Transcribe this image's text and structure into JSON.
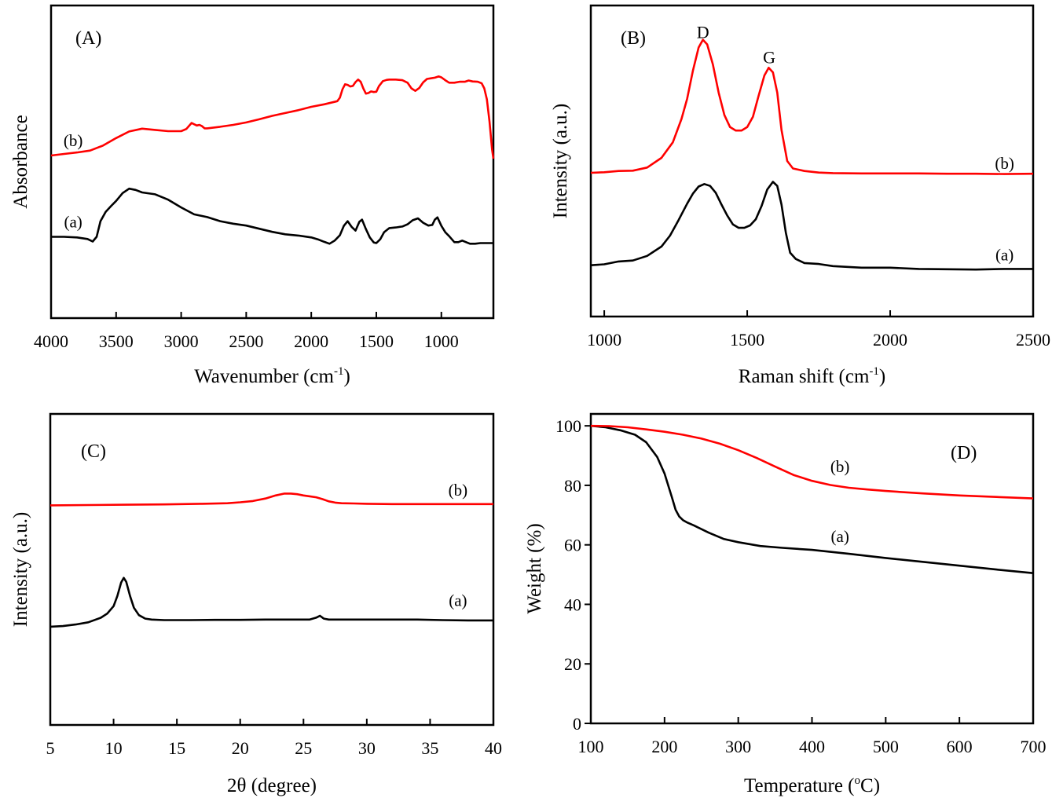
{
  "chart_data": [
    {
      "id": "A",
      "type": "line",
      "panel_label": "(A)",
      "title": "",
      "xlabel": "Wavenumber (cm",
      "xlabel_sup": "-1",
      "xlabel_tail": ")",
      "ylabel": "Absorbance",
      "xlim": [
        4000,
        600
      ],
      "ylim": [
        0,
        100
      ],
      "x_reversed": true,
      "xticks": [
        4000,
        3500,
        3000,
        2500,
        2000,
        1500,
        1000
      ],
      "yticks": [],
      "grid": false,
      "series": [
        {
          "name": "(a)",
          "color": "#000000",
          "label_pos": {
            "x": 3830,
            "y": 29
          },
          "x": [
            4000,
            3900,
            3800,
            3720,
            3680,
            3650,
            3620,
            3580,
            3540,
            3500,
            3450,
            3400,
            3350,
            3300,
            3200,
            3100,
            3000,
            2900,
            2800,
            2700,
            2600,
            2500,
            2400,
            2300,
            2200,
            2100,
            2000,
            1950,
            1900,
            1860,
            1820,
            1780,
            1750,
            1720,
            1690,
            1660,
            1630,
            1610,
            1580,
            1550,
            1520,
            1500,
            1470,
            1440,
            1400,
            1350,
            1300,
            1260,
            1220,
            1180,
            1140,
            1100,
            1070,
            1050,
            1030,
            1000,
            970,
            940,
            900,
            870,
            840,
            810,
            780,
            740,
            700,
            650,
            600
          ],
          "y": [
            26,
            26,
            25.8,
            25.3,
            24.5,
            26,
            31,
            34,
            35.8,
            37.5,
            40,
            41.4,
            41,
            40.2,
            39.6,
            37.9,
            35.4,
            33.2,
            32.3,
            31,
            30.2,
            29.6,
            28.6,
            27.6,
            26.8,
            26.4,
            25.8,
            25.2,
            24.4,
            23.8,
            24.8,
            26.5,
            29.5,
            31,
            29.2,
            28,
            30.8,
            31.5,
            28.5,
            25.8,
            24.2,
            24,
            25.2,
            27.5,
            28.8,
            29,
            29.3,
            30,
            31.3,
            31.9,
            30.5,
            29.6,
            29.8,
            31.5,
            32.2,
            29.5,
            27.5,
            26.2,
            24.3,
            24.3,
            24.8,
            24.3,
            23.8,
            23.8,
            24,
            24,
            24
          ]
        },
        {
          "name": "(b)",
          "color": "#ff0000",
          "label_pos": {
            "x": 3830,
            "y": 55
          },
          "x": [
            4000,
            3900,
            3800,
            3700,
            3600,
            3500,
            3400,
            3300,
            3200,
            3100,
            3000,
            2960,
            2920,
            2900,
            2880,
            2860,
            2840,
            2820,
            2800,
            2700,
            2600,
            2500,
            2400,
            2300,
            2200,
            2100,
            2000,
            1900,
            1800,
            1780,
            1760,
            1740,
            1720,
            1700,
            1680,
            1660,
            1640,
            1620,
            1600,
            1580,
            1560,
            1540,
            1520,
            1500,
            1480,
            1450,
            1420,
            1400,
            1350,
            1300,
            1260,
            1230,
            1200,
            1170,
            1140,
            1110,
            1080,
            1050,
            1020,
            1000,
            970,
            940,
            900,
            860,
            820,
            790,
            760,
            720,
            690,
            670,
            650,
            630,
            610,
            600
          ],
          "y": [
            52,
            52.5,
            53,
            53.6,
            55.2,
            57.6,
            59.7,
            60.6,
            60.2,
            59.8,
            59.8,
            60.5,
            62.4,
            62,
            61.6,
            61.8,
            61.4,
            60.7,
            60.7,
            61.2,
            61.8,
            62.6,
            63.6,
            64.7,
            65.6,
            66.5,
            67.6,
            68.4,
            69.4,
            70.5,
            73.2,
            74.8,
            74.6,
            74.1,
            74.3,
            75.5,
            76.3,
            75.6,
            73.5,
            71.8,
            72,
            72.5,
            72.3,
            72.4,
            74.2,
            75.8,
            76.2,
            76.3,
            76.3,
            76.1,
            75.3,
            73.5,
            72.7,
            73.6,
            75.4,
            76.5,
            76.7,
            76.9,
            77.3,
            77,
            76.1,
            75.3,
            75.3,
            75.6,
            75.6,
            76,
            75.7,
            75.6,
            75.1,
            73.5,
            70,
            63,
            54,
            51
          ]
        }
      ]
    },
    {
      "id": "B",
      "type": "line",
      "panel_label": "(B)",
      "title": "",
      "xlabel": "Raman shift (cm",
      "xlabel_sup": "-1",
      "xlabel_tail": ")",
      "ylabel": "Intensity (a.u.)",
      "xlim": [
        953,
        2500
      ],
      "ylim": [
        0,
        100
      ],
      "x_reversed": false,
      "xticks": [
        1000,
        1500,
        2000,
        2500
      ],
      "yticks": [],
      "grid": false,
      "annotations": [
        {
          "text": "D",
          "x": 1345,
          "y": 89.5
        },
        {
          "text": "G",
          "x": 1577,
          "y": 81.5
        }
      ],
      "series": [
        {
          "name": "(a)",
          "color": "#000000",
          "label_pos": {
            "x": 2400,
            "y": 18
          },
          "x": [
            953,
            1000,
            1050,
            1100,
            1150,
            1200,
            1230,
            1260,
            1290,
            1310,
            1330,
            1350,
            1370,
            1390,
            1410,
            1430,
            1450,
            1470,
            1490,
            1510,
            1530,
            1550,
            1570,
            1590,
            1605,
            1620,
            1635,
            1650,
            1670,
            1700,
            1750,
            1800,
            1900,
            2000,
            2100,
            2200,
            2300,
            2400,
            2500
          ],
          "y": [
            16.5,
            16.8,
            17.7,
            18,
            19.5,
            22.5,
            26,
            31,
            36.3,
            39.5,
            41.8,
            42.6,
            42,
            39.8,
            36,
            32.5,
            29.6,
            28.5,
            28.5,
            29.3,
            31.3,
            35.5,
            40.8,
            43.3,
            42,
            36,
            27,
            20.5,
            18.5,
            17.2,
            16.9,
            16.2,
            15.7,
            15.7,
            15.3,
            15.2,
            15.1,
            15.3,
            15.3
          ]
        },
        {
          "name": "(b)",
          "color": "#ff0000",
          "label_pos": {
            "x": 2400,
            "y": 47.5
          },
          "x": [
            953,
            1000,
            1050,
            1100,
            1150,
            1200,
            1240,
            1270,
            1290,
            1310,
            1330,
            1345,
            1360,
            1380,
            1400,
            1420,
            1440,
            1460,
            1480,
            1500,
            1520,
            1540,
            1560,
            1575,
            1590,
            1605,
            1620,
            1640,
            1660,
            1700,
            1750,
            1800,
            1900,
            2000,
            2100,
            2200,
            2300,
            2400,
            2500
          ],
          "y": [
            46.2,
            46.4,
            46.8,
            46.9,
            47.9,
            51,
            56,
            63.5,
            70,
            79,
            86.5,
            89,
            87.5,
            81,
            72,
            64.8,
            60.9,
            59.8,
            59.8,
            60.9,
            64.2,
            71,
            77.5,
            80,
            78.5,
            72,
            60,
            50,
            47.6,
            46.8,
            46.3,
            46.1,
            46,
            46,
            46,
            45.9,
            45.9,
            45.8,
            45.9
          ]
        }
      ]
    },
    {
      "id": "C",
      "type": "line",
      "panel_label": "(C)",
      "title": "",
      "xlabel": "2θ (degree)",
      "ylabel": "Intensity (a.u.)",
      "xlim": [
        5,
        40
      ],
      "ylim": [
        0,
        100
      ],
      "x_reversed": false,
      "xticks": [
        5,
        10,
        15,
        20,
        25,
        30,
        35,
        40
      ],
      "yticks": [],
      "grid": false,
      "series": [
        {
          "name": "(a)",
          "color": "#000000",
          "label_pos": {
            "x": 37.2,
            "y": 38.2
          },
          "x": [
            5,
            6,
            7,
            8,
            9,
            9.5,
            10,
            10.3,
            10.6,
            10.8,
            11,
            11.3,
            11.6,
            12,
            12.5,
            13,
            14,
            16,
            18,
            20,
            22,
            24,
            25.5,
            26,
            26.3,
            26.6,
            27,
            28,
            30,
            32,
            34,
            36,
            38,
            40
          ],
          "y": [
            31.6,
            31.8,
            32.3,
            33,
            34.5,
            35.8,
            38.2,
            41.5,
            45.8,
            47.3,
            46,
            41.5,
            37.7,
            35.3,
            34.2,
            33.9,
            33.7,
            33.7,
            33.8,
            33.8,
            33.9,
            33.9,
            33.9,
            34.5,
            35.1,
            34.2,
            33.9,
            33.9,
            33.9,
            33.9,
            33.9,
            33.7,
            33.6,
            33.6
          ]
        },
        {
          "name": "(b)",
          "color": "#ff0000",
          "label_pos": {
            "x": 37.2,
            "y": 73.7
          },
          "x": [
            5,
            8,
            11,
            14,
            17,
            19,
            20,
            21,
            22,
            22.8,
            23.5,
            24,
            24.5,
            25,
            25.5,
            26,
            26.5,
            27,
            27.5,
            28,
            29,
            30,
            32,
            34,
            36,
            38,
            40
          ],
          "y": [
            70.6,
            70.7,
            70.8,
            70.9,
            71.1,
            71.3,
            71.6,
            72,
            72.8,
            73.8,
            74.4,
            74.4,
            74.2,
            73.8,
            73.5,
            73.2,
            72.6,
            71.9,
            71.5,
            71.3,
            71.2,
            71.1,
            71,
            71,
            71,
            71,
            71
          ]
        }
      ]
    },
    {
      "id": "D",
      "type": "line",
      "panel_label": "(D)",
      "title": "",
      "xlabel": "Temperature (",
      "xlabel_sup": "o",
      "xlabel_tail": "C)",
      "ylabel": "Weight (%)",
      "xlim": [
        100,
        700
      ],
      "ylim": [
        0,
        104
      ],
      "x_reversed": false,
      "xticks": [
        100,
        200,
        300,
        400,
        500,
        600,
        700
      ],
      "yticks": [
        0,
        20,
        40,
        60,
        80,
        100
      ],
      "grid": false,
      "series": [
        {
          "name": "(a)",
          "color": "#000000",
          "label_pos": {
            "x": 438,
            "y": 61
          },
          "x": [
            100,
            120,
            140,
            160,
            175,
            190,
            200,
            210,
            215,
            220,
            225,
            230,
            240,
            260,
            280,
            300,
            330,
            360,
            400,
            450,
            500,
            550,
            600,
            650,
            700
          ],
          "y": [
            100,
            99.5,
            98.5,
            97,
            94.5,
            89.5,
            84,
            76,
            71.8,
            69.5,
            68.3,
            67.6,
            66.5,
            64.1,
            62,
            60.9,
            59.6,
            59,
            58.3,
            57,
            55.6,
            54.3,
            53,
            51.7,
            50.5
          ]
        },
        {
          "name": "(b)",
          "color": "#ff0000",
          "label_pos": {
            "x": 438,
            "y": 84.5
          },
          "x": [
            100,
            125,
            150,
            175,
            200,
            225,
            250,
            275,
            300,
            325,
            350,
            375,
            400,
            425,
            450,
            475,
            500,
            550,
            600,
            650,
            700
          ],
          "y": [
            100,
            99.9,
            99.5,
            98.8,
            98,
            97,
            95.7,
            94,
            91.8,
            89.2,
            86.3,
            83.5,
            81.5,
            80.1,
            79.2,
            78.6,
            78.1,
            77.3,
            76.6,
            76.1,
            75.6
          ]
        }
      ]
    }
  ]
}
